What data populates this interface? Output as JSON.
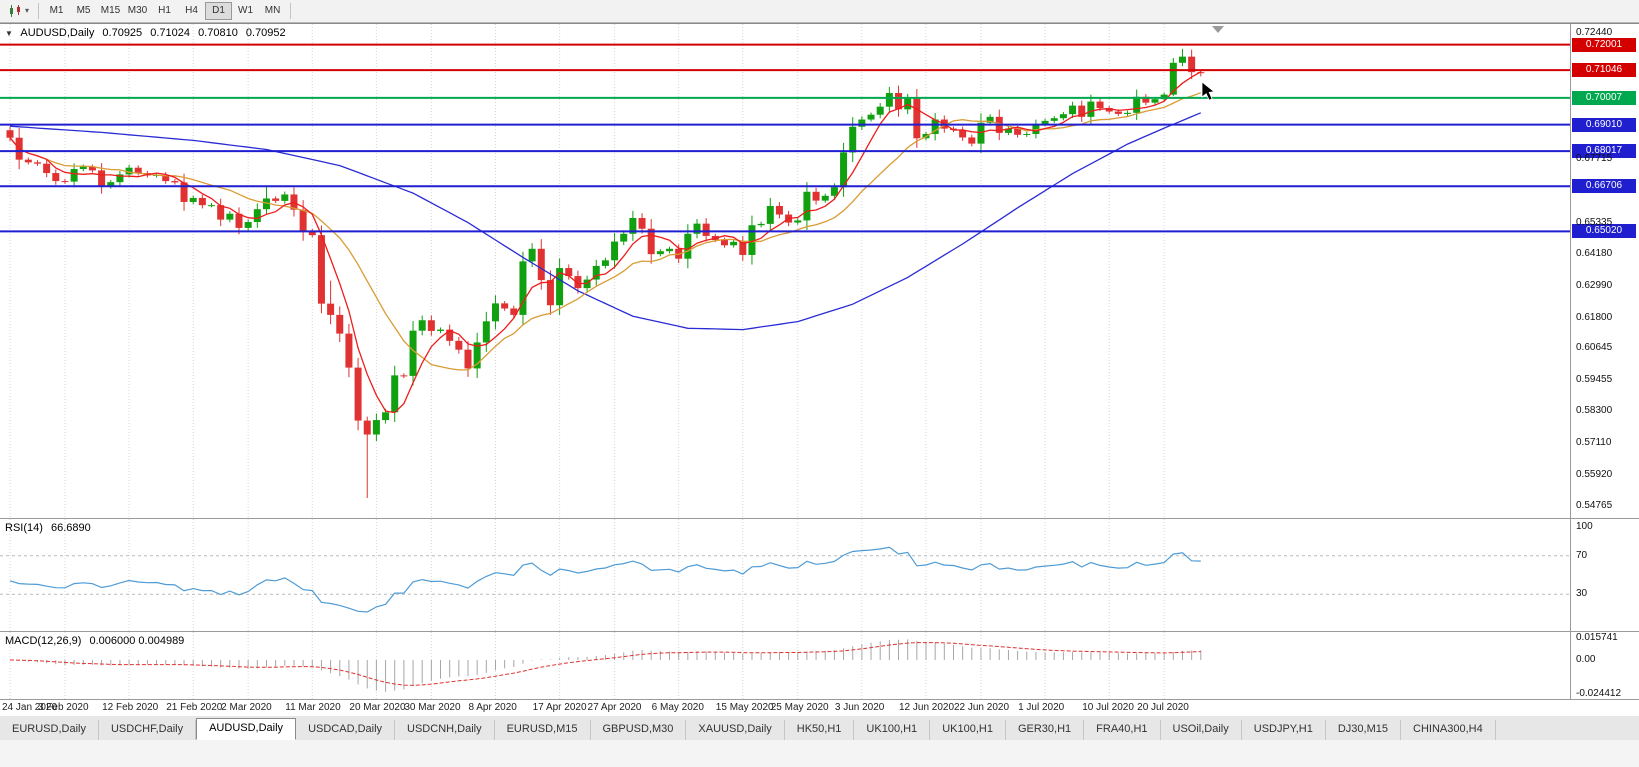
{
  "toolbar": {
    "timeframes": [
      "M1",
      "M5",
      "M15",
      "M30",
      "H1",
      "H4",
      "D1",
      "W1",
      "MN"
    ],
    "active": "D1"
  },
  "title": {
    "symbol": "AUDUSD,Daily",
    "o": "0.70925",
    "h": "0.71024",
    "l": "0.70810",
    "c": "0.70952"
  },
  "indicators": {
    "rsi_label": "RSI(14)",
    "rsi_value": "66.6890",
    "rsi_axis": [
      "100",
      "70",
      "30"
    ],
    "macd_label": "MACD(12,26,9)",
    "macd_values": "0.006000 0.004989",
    "macd_axis": [
      "0.015741",
      "0.00",
      "-0.024412"
    ]
  },
  "levels": [
    {
      "price": 0.72001,
      "label": "0.72001",
      "color": "#d40000"
    },
    {
      "price": 0.71046,
      "label": "0.71046",
      "color": "#d40000"
    },
    {
      "price": 0.70007,
      "label": "0.70007",
      "color": "#00a84f"
    },
    {
      "price": 0.6901,
      "label": "0.69010",
      "color": "#1f1fd0"
    },
    {
      "price": 0.68017,
      "label": "0.68017",
      "color": "#1f1fd0"
    },
    {
      "price": 0.66706,
      "label": "0.66706",
      "color": "#1f1fd0"
    },
    {
      "price": 0.6502,
      "label": "0.65020",
      "color": "#1f1fd0"
    }
  ],
  "tabs": {
    "items": [
      "EURUSD,Daily",
      "USDCHF,Daily",
      "AUDUSD,Daily",
      "USDCAD,Daily",
      "USDCNH,Daily",
      "EURUSD,M15",
      "GBPUSD,M30",
      "XAUUSD,Daily",
      "HK50,H1",
      "UK100,H1",
      "UK100,H1",
      "GER30,H1",
      "FRA40,H1",
      "USOil,Daily",
      "USDJPY,H1",
      "DJ30,M15",
      "CHINA300,H4"
    ],
    "active_index": 2
  },
  "colors": {
    "up": "#10a010",
    "down": "#e03232",
    "ma_fast": "#ee1c1c",
    "ma_mid": "#d99b34",
    "ma_slow": "#2b2bd5",
    "rsi_line": "#4f9bd5",
    "rsi_level": "#b9b9b9",
    "macd_hist": "#a6a6a6",
    "macd_signal": "#e03232",
    "grid": "#d6d6d6"
  },
  "icons": {
    "title_marker_glyph": "▼",
    "caret_glyph": "▾"
  },
  "chart_data": {
    "type": "candlestick",
    "symbol": "AUDUSD",
    "timeframe": "Daily",
    "price_range": [
      0.5446,
      0.7262
    ],
    "open_first": 0.688,
    "closes": [
      0.6852,
      0.677,
      0.676,
      0.6755,
      0.672,
      0.669,
      0.6688,
      0.6735,
      0.6744,
      0.673,
      0.667,
      0.6686,
      0.6715,
      0.674,
      0.672,
      0.6711,
      0.6713,
      0.669,
      0.6685,
      0.6612,
      0.6627,
      0.66,
      0.66,
      0.6546,
      0.6568,
      0.6515,
      0.6537,
      0.6585,
      0.6625,
      0.6616,
      0.664,
      0.6583,
      0.6503,
      0.6488,
      0.6232,
      0.619,
      0.612,
      0.5993,
      0.5795,
      0.5743,
      0.5797,
      0.5826,
      0.5964,
      0.5962,
      0.6131,
      0.617,
      0.613,
      0.6135,
      0.6093,
      0.606,
      0.599,
      0.6087,
      0.6166,
      0.6233,
      0.6214,
      0.619,
      0.639,
      0.6437,
      0.632,
      0.6226,
      0.6365,
      0.6335,
      0.629,
      0.6322,
      0.6373,
      0.6394,
      0.6464,
      0.6493,
      0.6552,
      0.6512,
      0.6417,
      0.6428,
      0.6437,
      0.64,
      0.6493,
      0.6531,
      0.6485,
      0.647,
      0.645,
      0.6463,
      0.6414,
      0.6525,
      0.653,
      0.6597,
      0.6565,
      0.6535,
      0.6543,
      0.665,
      0.6617,
      0.6635,
      0.6667,
      0.6797,
      0.6893,
      0.692,
      0.6938,
      0.6968,
      0.7019,
      0.6958,
      0.6998,
      0.685,
      0.6866,
      0.692,
      0.6886,
      0.6881,
      0.6853,
      0.683,
      0.6908,
      0.693,
      0.687,
      0.6886,
      0.6863,
      0.6866,
      0.6903,
      0.6915,
      0.6925,
      0.694,
      0.6972,
      0.693,
      0.6987,
      0.6963,
      0.695,
      0.6941,
      0.6945,
      0.7005,
      0.6983,
      0.6996,
      0.7013,
      0.7132,
      0.7155,
      0.7097,
      0.7095
    ],
    "wick_overrides": {
      "28": [
        0.6668,
        0.6565
      ],
      "35": [
        0.6318,
        0.6155
      ],
      "39": [
        0.581,
        0.5506
      ],
      "127": [
        0.715,
        0.7008
      ],
      "128": [
        0.7184,
        0.712
      ],
      "130": [
        0.71024,
        0.7081
      ]
    },
    "ma_fast_period": 5,
    "ma_mid_period": 13,
    "ma_blue_anchors": {
      "idx": [
        0,
        10,
        20,
        28,
        36,
        44,
        50,
        56,
        62,
        68,
        74,
        80,
        86,
        92,
        98,
        104,
        110,
        116,
        122,
        126,
        130
      ],
      "price": [
        0.6895,
        0.6872,
        0.6842,
        0.6808,
        0.6748,
        0.6645,
        0.6535,
        0.6405,
        0.628,
        0.6185,
        0.614,
        0.6135,
        0.6165,
        0.623,
        0.633,
        0.6455,
        0.659,
        0.6718,
        0.6828,
        0.6888,
        0.6945
      ]
    },
    "y_ticks": [
      "0.72440",
      "0.67715",
      "0.65335",
      "0.64180",
      "0.62990",
      "0.61800",
      "0.60645",
      "0.59455",
      "0.58300",
      "0.57110",
      "0.55920",
      "0.54765"
    ],
    "x_labels": [
      {
        "text": "24 Jan 2020",
        "i": 0
      },
      {
        "text": "3 Feb 2020",
        "i": 6
      },
      {
        "text": "12 Feb 2020",
        "i": 13
      },
      {
        "text": "21 Feb 2020",
        "i": 20
      },
      {
        "text": "2 Mar 2020",
        "i": 26
      },
      {
        "text": "11 Mar 2020",
        "i": 33
      },
      {
        "text": "20 Mar 2020",
        "i": 40
      },
      {
        "text": "30 Mar 2020",
        "i": 46
      },
      {
        "text": "8 Apr 2020",
        "i": 53
      },
      {
        "text": "17 Apr 2020",
        "i": 60
      },
      {
        "text": "27 Apr 2020",
        "i": 66
      },
      {
        "text": "6 May 2020",
        "i": 73
      },
      {
        "text": "15 May 2020",
        "i": 80
      },
      {
        "text": "25 May 2020",
        "i": 86
      },
      {
        "text": "3 Jun 2020",
        "i": 93
      },
      {
        "text": "12 Jun 2020",
        "i": 100
      },
      {
        "text": "22 Jun 2020",
        "i": 106
      },
      {
        "text": "1 Jul 2020",
        "i": 113
      },
      {
        "text": "10 Jul 2020",
        "i": 120
      },
      {
        "text": "20 Jul 2020",
        "i": 126
      }
    ],
    "rsi": {
      "period": 14,
      "levels": [
        100,
        70,
        30
      ]
    },
    "macd": {
      "fast": 12,
      "slow": 26,
      "signal": 9,
      "range": [
        0.015741,
        -0.024412
      ]
    }
  }
}
